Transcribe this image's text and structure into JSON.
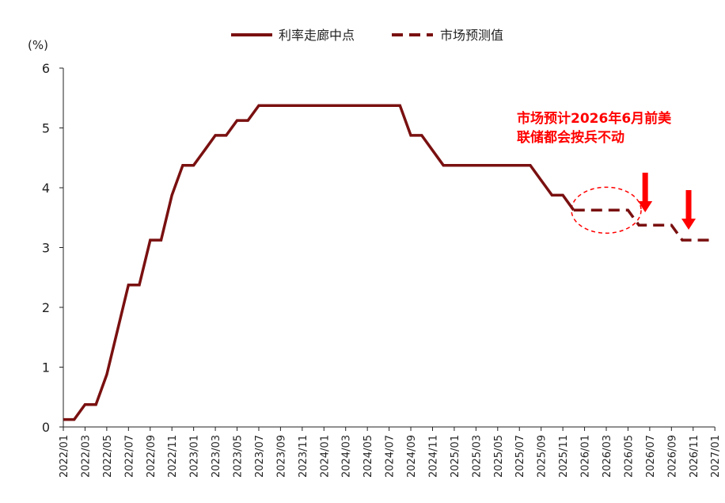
{
  "chart_data": {
    "type": "line",
    "y_unit": "(%)",
    "ylim": [
      0,
      6
    ],
    "y_ticks": [
      0,
      1,
      2,
      3,
      4,
      5,
      6
    ],
    "x_tick_labels": [
      "2022/01",
      "2022/03",
      "2022/05",
      "2022/07",
      "2022/09",
      "2022/11",
      "2023/01",
      "2023/03",
      "2023/05",
      "2023/07",
      "2023/09",
      "2023/11",
      "2024/01",
      "2024/03",
      "2024/05",
      "2024/07",
      "2024/09",
      "2024/11",
      "2025/01",
      "2025/03",
      "2025/05",
      "2025/07",
      "2025/09",
      "2025/11",
      "2026/01",
      "2026/03",
      "2026/05",
      "2026/07",
      "2026/09",
      "2026/11",
      "2027/01"
    ],
    "legend_position": "top",
    "grid": false,
    "colors": {
      "series": "#7a1010",
      "annotation": "#ff0000"
    },
    "series": [
      {
        "name": "利率走廊中点",
        "style": "solid",
        "points": [
          [
            "2022/01",
            0.125
          ],
          [
            "2022/02",
            0.125
          ],
          [
            "2022/03",
            0.375
          ],
          [
            "2022/04",
            0.375
          ],
          [
            "2022/05",
            0.875
          ],
          [
            "2022/06",
            1.625
          ],
          [
            "2022/07",
            2.375
          ],
          [
            "2022/08",
            2.375
          ],
          [
            "2022/09",
            3.125
          ],
          [
            "2022/10",
            3.125
          ],
          [
            "2022/11",
            3.875
          ],
          [
            "2022/12",
            4.375
          ],
          [
            "2023/01",
            4.375
          ],
          [
            "2023/02",
            4.625
          ],
          [
            "2023/03",
            4.875
          ],
          [
            "2023/04",
            4.875
          ],
          [
            "2023/05",
            5.125
          ],
          [
            "2023/06",
            5.125
          ],
          [
            "2023/07",
            5.375
          ],
          [
            "2023/08",
            5.375
          ],
          [
            "2023/09",
            5.375
          ],
          [
            "2023/10",
            5.375
          ],
          [
            "2023/11",
            5.375
          ],
          [
            "2023/12",
            5.375
          ],
          [
            "2024/01",
            5.375
          ],
          [
            "2024/02",
            5.375
          ],
          [
            "2024/03",
            5.375
          ],
          [
            "2024/04",
            5.375
          ],
          [
            "2024/05",
            5.375
          ],
          [
            "2024/06",
            5.375
          ],
          [
            "2024/07",
            5.375
          ],
          [
            "2024/08",
            5.375
          ],
          [
            "2024/09",
            4.875
          ],
          [
            "2024/10",
            4.875
          ],
          [
            "2024/11",
            4.625
          ],
          [
            "2024/12",
            4.375
          ],
          [
            "2025/01",
            4.375
          ],
          [
            "2025/02",
            4.375
          ],
          [
            "2025/03",
            4.375
          ],
          [
            "2025/04",
            4.375
          ],
          [
            "2025/05",
            4.375
          ],
          [
            "2025/06",
            4.375
          ],
          [
            "2025/07",
            4.375
          ],
          [
            "2025/08",
            4.375
          ],
          [
            "2025/09",
            4.125
          ],
          [
            "2025/10",
            3.875
          ],
          [
            "2025/11",
            3.875
          ],
          [
            "2025/12",
            3.625
          ]
        ]
      },
      {
        "name": "市场预测值",
        "style": "dashed",
        "points": [
          [
            "2025/12",
            3.625
          ],
          [
            "2026/01",
            3.625
          ],
          [
            "2026/02",
            3.625
          ],
          [
            "2026/03",
            3.625
          ],
          [
            "2026/04",
            3.625
          ],
          [
            "2026/05",
            3.625
          ],
          [
            "2026/06",
            3.375
          ],
          [
            "2026/07",
            3.375
          ],
          [
            "2026/08",
            3.375
          ],
          [
            "2026/09",
            3.375
          ],
          [
            "2026/10",
            3.125
          ],
          [
            "2026/11",
            3.125
          ],
          [
            "2026/12",
            3.125
          ],
          [
            "2027/01",
            3.125
          ]
        ]
      }
    ],
    "annotations": [
      {
        "text_lines": [
          "市场预计2026年6月前美",
          "联储都会按兵不动"
        ]
      }
    ],
    "arrows": [
      {
        "x": "2026/06",
        "direction": "down"
      },
      {
        "x": "2026/10",
        "direction": "down"
      }
    ],
    "circle_highlight": {
      "x_from": "2025/12",
      "x_to": "2026/06",
      "y": 3.625
    }
  }
}
